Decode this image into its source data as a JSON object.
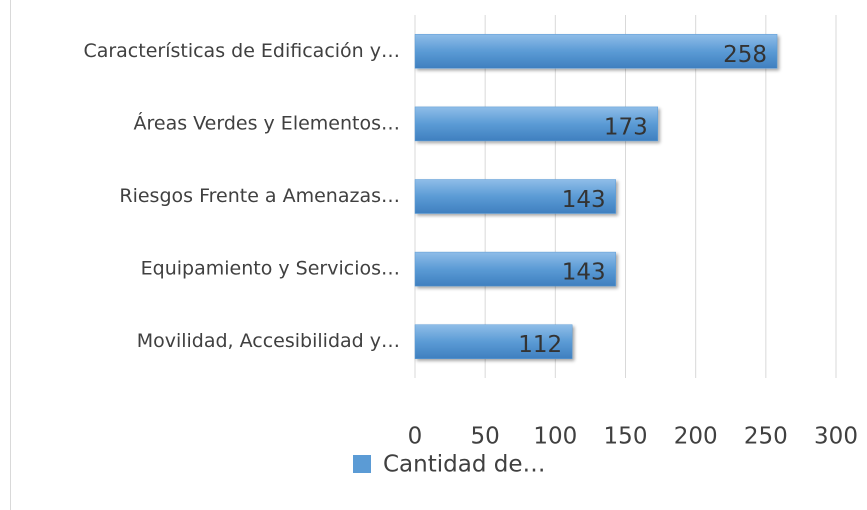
{
  "chart_data": {
    "type": "bar",
    "orientation": "horizontal",
    "categories": [
      "Características de Edificación y…",
      "Áreas Verdes y Elementos…",
      "Riesgos Frente a Amenazas…",
      "Equipamiento y Servicios…",
      "Movilidad, Accesibilidad y…"
    ],
    "series": [
      {
        "name": "Cantidad de…",
        "color": "#5b9bd5",
        "values": [
          258,
          173,
          143,
          143,
          112
        ]
      }
    ],
    "xlim": [
      0,
      300
    ],
    "xticks": [
      0,
      50,
      100,
      150,
      200,
      250,
      300
    ],
    "grid": true,
    "legend": "bottom"
  }
}
